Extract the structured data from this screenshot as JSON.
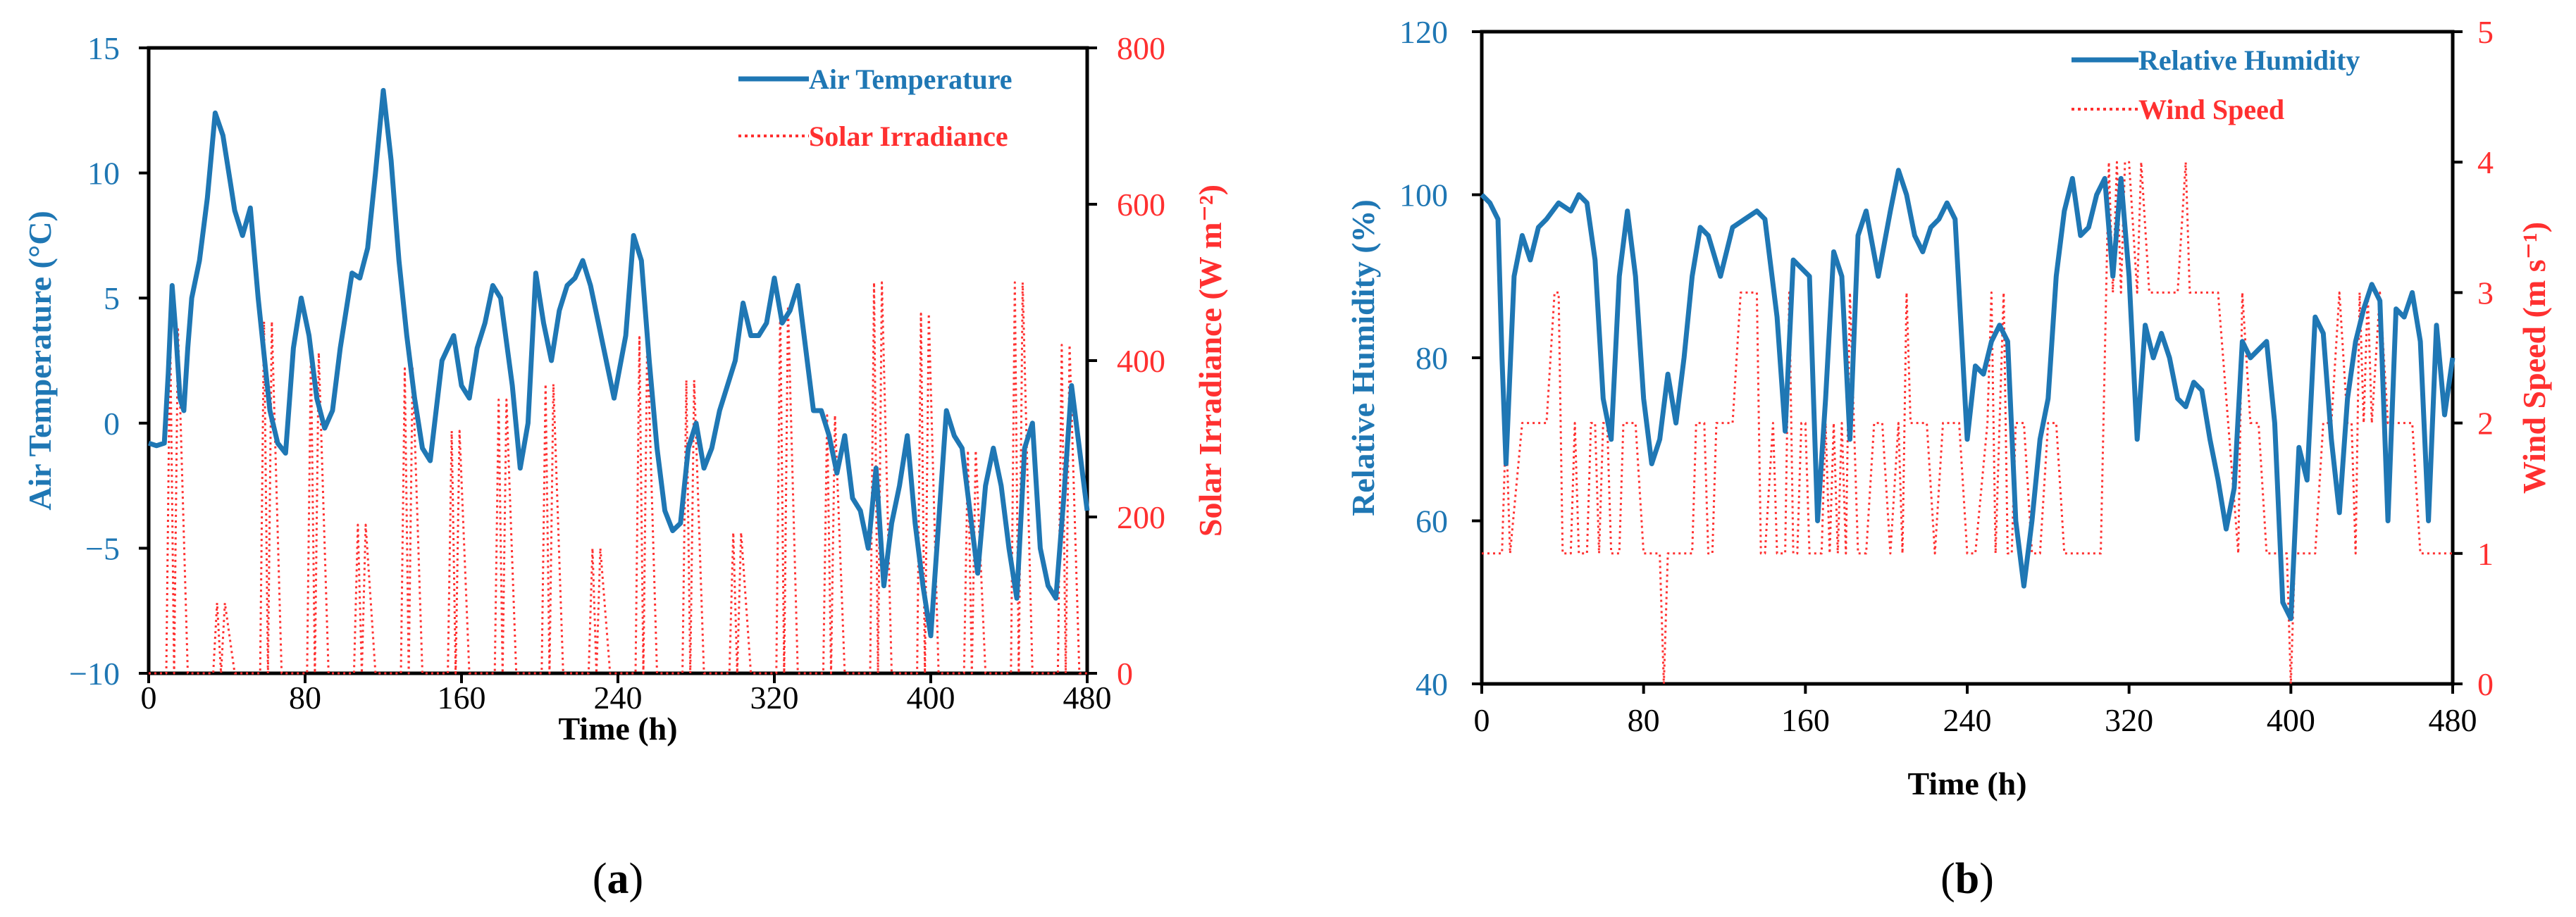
{
  "colors": {
    "primary": "#1f77b4",
    "secondary": "#ff3030",
    "axis": "#000000"
  },
  "chart_data": [
    {
      "type": "line",
      "panel_label": "(a)",
      "panel_letter": "a",
      "xlabel": "Time (h)",
      "ylabel_left": "Air Temperature (°C)",
      "ylabel_right": "Solar Irradiance (W m⁻²)",
      "xlim": [
        0,
        480
      ],
      "ylim_left": [
        -10,
        15
      ],
      "ylim_right": [
        0,
        800
      ],
      "x_ticks": [
        "0",
        "80",
        "160",
        "240",
        "320",
        "400",
        "480"
      ],
      "y_left_ticks": [
        "15",
        "10",
        "5",
        "0",
        "−5",
        "−10"
      ],
      "y_right_ticks": [
        "800",
        "600",
        "400",
        "200",
        "0"
      ],
      "legend": [
        "Air Temperature",
        "Solar Irradiance"
      ],
      "series": [
        {
          "name": "Air Temperature",
          "axis": "left",
          "style": "solid",
          "x": [
            0,
            4,
            8,
            10,
            12,
            14,
            16,
            18,
            20,
            22,
            26,
            30,
            34,
            38,
            42,
            44,
            48,
            52,
            56,
            60,
            62,
            66,
            70,
            74,
            78,
            82,
            86,
            90,
            94,
            98,
            104,
            108,
            112,
            116,
            120,
            124,
            128,
            132,
            136,
            140,
            144,
            150,
            156,
            160,
            164,
            168,
            172,
            176,
            180,
            186,
            190,
            194,
            198,
            202,
            206,
            210,
            214,
            218,
            222,
            226,
            230,
            234,
            238,
            244,
            248,
            252,
            256,
            260,
            264,
            268,
            272,
            276,
            280,
            284,
            288,
            292,
            296,
            300,
            304,
            308,
            312,
            316,
            320,
            324,
            328,
            332,
            336,
            340,
            344,
            348,
            352,
            356,
            360,
            364,
            368,
            372,
            376,
            380,
            384,
            388,
            392,
            396,
            400,
            404,
            408,
            412,
            416,
            420,
            424,
            428,
            432,
            436,
            440,
            444,
            448,
            452,
            456,
            460,
            464,
            468,
            472,
            476,
            480
          ],
          "values": [
            -0.8,
            -0.9,
            -0.8,
            2.0,
            5.5,
            3.5,
            1.0,
            0.5,
            3.0,
            5.0,
            6.5,
            9.0,
            12.4,
            11.5,
            9.5,
            8.5,
            7.5,
            8.6,
            5.0,
            2.0,
            0.5,
            -0.8,
            -1.2,
            3.0,
            5.0,
            3.5,
            1.0,
            -0.2,
            0.5,
            3.0,
            6.0,
            5.8,
            7.0,
            10.0,
            13.3,
            10.5,
            6.5,
            3.5,
            1.0,
            -1.0,
            -1.5,
            2.5,
            3.5,
            1.5,
            1.0,
            3.0,
            4.0,
            5.5,
            5.0,
            1.5,
            -1.8,
            0.0,
            6.0,
            4.0,
            2.5,
            4.5,
            5.5,
            5.8,
            6.5,
            5.5,
            4.0,
            2.5,
            1.0,
            3.5,
            7.5,
            6.5,
            2.5,
            -1.0,
            -3.5,
            -4.3,
            -4.0,
            -1.0,
            0.0,
            -1.8,
            -1.0,
            0.5,
            1.5,
            2.5,
            4.8,
            3.5,
            3.5,
            4.0,
            5.8,
            4.0,
            4.5,
            5.5,
            3.0,
            0.5,
            0.5,
            -0.5,
            -2.0,
            -0.5,
            -3.0,
            -3.5,
            -5.0,
            -1.8,
            -6.5,
            -4.0,
            -2.5,
            -0.5,
            -4.0,
            -6.5,
            -8.5,
            -4.0,
            0.5,
            -0.5,
            -1.0,
            -3.5,
            -6.0,
            -2.5,
            -1.0,
            -2.5,
            -5.0,
            -7.0,
            -1.0,
            0.0,
            -5.0,
            -6.5,
            -7.0,
            -3.0,
            1.5,
            -1.0,
            -3.5
          ]
        },
        {
          "name": "Solar Irradiance",
          "axis": "right",
          "style": "dotted",
          "x": [
            0,
            6,
            9,
            11,
            13,
            15,
            20,
            31,
            33,
            35,
            37,
            39,
            44,
            55,
            57,
            59,
            61,
            63,
            68,
            79,
            81,
            83,
            85,
            87,
            92,
            103,
            105,
            107,
            109,
            111,
            116,
            127,
            129,
            131,
            133,
            135,
            140,
            151,
            153,
            155,
            157,
            159,
            164,
            175,
            177,
            179,
            181,
            183,
            188,
            199,
            201,
            203,
            205,
            207,
            212,
            223,
            225,
            227,
            229,
            231,
            236,
            247,
            249,
            251,
            253,
            255,
            260,
            271,
            273,
            275,
            277,
            279,
            284,
            295,
            297,
            299,
            301,
            303,
            308,
            319,
            321,
            323,
            325,
            327,
            332,
            343,
            345,
            347,
            349,
            351,
            356,
            367,
            369,
            371,
            373,
            375,
            380,
            391,
            393,
            395,
            397,
            399,
            404,
            415,
            417,
            419,
            421,
            423,
            428,
            439,
            441,
            443,
            445,
            447,
            452,
            463,
            465,
            467,
            469,
            471,
            476,
            480
          ],
          "values": [
            0,
            0,
            0,
            440,
            0,
            440,
            0,
            0,
            0,
            90,
            0,
            90,
            0,
            0,
            0,
            450,
            0,
            450,
            0,
            0,
            0,
            410,
            0,
            410,
            0,
            0,
            0,
            190,
            0,
            190,
            0,
            0,
            0,
            390,
            0,
            390,
            0,
            0,
            0,
            310,
            0,
            310,
            0,
            0,
            0,
            350,
            0,
            350,
            0,
            0,
            0,
            370,
            0,
            370,
            0,
            0,
            0,
            160,
            0,
            160,
            0,
            0,
            0,
            430,
            0,
            430,
            0,
            0,
            0,
            375,
            0,
            375,
            0,
            0,
            0,
            180,
            0,
            180,
            0,
            0,
            0,
            470,
            0,
            470,
            0,
            0,
            0,
            330,
            0,
            330,
            0,
            0,
            0,
            500,
            0,
            500,
            0,
            0,
            0,
            460,
            0,
            460,
            0,
            0,
            0,
            285,
            0,
            285,
            0,
            0,
            0,
            500,
            0,
            500,
            0,
            0,
            0,
            420,
            0,
            420,
            0,
            0
          ]
        }
      ]
    },
    {
      "type": "line",
      "panel_label": "(b)",
      "panel_letter": "b",
      "xlabel": "Time (h)",
      "ylabel_left": "Relative Humidity (%)",
      "ylabel_right": "Wind Speed (m s⁻¹)",
      "xlim": [
        0,
        480
      ],
      "ylim_left": [
        40,
        120
      ],
      "ylim_right": [
        0,
        5
      ],
      "x_ticks": [
        "0",
        "80",
        "160",
        "240",
        "320",
        "400",
        "480"
      ],
      "y_left_ticks": [
        "120",
        "100",
        "80",
        "60",
        "40"
      ],
      "y_right_ticks": [
        "5",
        "4",
        "3",
        "2",
        "1",
        "0"
      ],
      "legend": [
        "Relative Humidity",
        "Wind Speed"
      ],
      "series": [
        {
          "name": "Relative Humidity",
          "axis": "left",
          "style": "solid",
          "x": [
            0,
            4,
            8,
            10,
            12,
            16,
            20,
            24,
            28,
            32,
            38,
            44,
            48,
            52,
            56,
            60,
            64,
            68,
            72,
            76,
            80,
            84,
            88,
            92,
            96,
            100,
            104,
            108,
            112,
            118,
            124,
            130,
            136,
            140,
            146,
            150,
            154,
            158,
            162,
            166,
            170,
            174,
            178,
            182,
            186,
            190,
            196,
            202,
            206,
            210,
            214,
            218,
            222,
            226,
            230,
            234,
            240,
            244,
            248,
            252,
            256,
            260,
            264,
            268,
            272,
            276,
            280,
            284,
            288,
            292,
            296,
            300,
            304,
            308,
            312,
            316,
            320,
            324,
            328,
            332,
            336,
            340,
            344,
            348,
            352,
            356,
            360,
            364,
            368,
            372,
            376,
            380,
            384,
            388,
            392,
            396,
            400,
            404,
            408,
            412,
            416,
            420,
            424,
            428,
            432,
            436,
            440,
            444,
            448,
            452,
            456,
            460,
            464,
            468,
            472,
            476,
            480
          ],
          "values": [
            100,
            99,
            97,
            80,
            67,
            90,
            95,
            92,
            96,
            97,
            99,
            98,
            100,
            99,
            92,
            75,
            70,
            90,
            98,
            90,
            75,
            67,
            70,
            78,
            72,
            80,
            90,
            96,
            95,
            90,
            96,
            97,
            98,
            97,
            85,
            71,
            92,
            91,
            90,
            60,
            75,
            93,
            90,
            70,
            95,
            98,
            90,
            98,
            103,
            100,
            95,
            93,
            96,
            97,
            99,
            97,
            70,
            79,
            78,
            82,
            84,
            82,
            60,
            52,
            60,
            70,
            75,
            90,
            98,
            102,
            95,
            96,
            100,
            102,
            90,
            102,
            90,
            70,
            84,
            80,
            83,
            80,
            75,
            74,
            77,
            76,
            70,
            65,
            59,
            64,
            82,
            80,
            81,
            82,
            72,
            50,
            48,
            69,
            65,
            85,
            83,
            70,
            61,
            75,
            82,
            86,
            89,
            87,
            60,
            86,
            85,
            88,
            82,
            60,
            84,
            73,
            80
          ]
        },
        {
          "name": "Wind Speed",
          "axis": "right",
          "style": "dotted",
          "x": [
            0,
            10,
            12,
            14,
            20,
            24,
            28,
            32,
            36,
            38,
            40,
            44,
            46,
            48,
            52,
            54,
            56,
            58,
            60,
            62,
            64,
            68,
            70,
            72,
            76,
            80,
            84,
            86,
            88,
            90,
            92,
            94,
            100,
            104,
            106,
            110,
            112,
            114,
            116,
            120,
            124,
            128,
            132,
            136,
            138,
            140,
            144,
            146,
            150,
            152,
            154,
            156,
            158,
            160,
            162,
            164,
            168,
            170,
            172,
            174,
            176,
            178,
            180,
            182,
            184,
            186,
            190,
            194,
            198,
            202,
            206,
            208,
            210,
            212,
            214,
            216,
            220,
            224,
            228,
            232,
            236,
            240,
            244,
            250,
            252,
            254,
            256,
            258,
            260,
            262,
            264,
            268,
            272,
            276,
            280,
            284,
            288,
            292,
            296,
            300,
            306,
            310,
            312,
            314,
            316,
            318,
            320,
            324,
            326,
            330,
            340,
            344,
            348,
            350,
            356,
            360,
            364,
            374,
            376,
            380,
            384,
            388,
            392,
            396,
            398,
            400,
            402,
            404,
            408,
            412,
            416,
            420,
            424,
            428,
            430,
            432,
            434,
            436,
            438,
            440,
            444,
            448,
            452,
            456,
            460,
            464,
            468,
            472,
            476,
            480
          ],
          "values": [
            1,
            1,
            2,
            1,
            2,
            2,
            2,
            2,
            3,
            3,
            1,
            1,
            2,
            1,
            1,
            2,
            2,
            1,
            2,
            2,
            1,
            1,
            2,
            2,
            2,
            1,
            1,
            1,
            1,
            0,
            1,
            1,
            1,
            1,
            2,
            2,
            1,
            1,
            2,
            2,
            2,
            3,
            3,
            3,
            1,
            1,
            2,
            1,
            1,
            3,
            1,
            1,
            2,
            2,
            1,
            1,
            1,
            2,
            1,
            2,
            1,
            2,
            1,
            3,
            2,
            1,
            1,
            2,
            2,
            1,
            2,
            1,
            3,
            2,
            2,
            2,
            2,
            1,
            2,
            2,
            2,
            1,
            1,
            2,
            3,
            1,
            2,
            3,
            1,
            1,
            2,
            2,
            1,
            1,
            2,
            2,
            1,
            1,
            1,
            1,
            1,
            4,
            3,
            4,
            3,
            4,
            4,
            3,
            4,
            3,
            3,
            3,
            4,
            3,
            3,
            3,
            3,
            1,
            3,
            2,
            2,
            1,
            1,
            1,
            1,
            0,
            1,
            1,
            1,
            1,
            2,
            2,
            3,
            2,
            2,
            1,
            3,
            2,
            3,
            2,
            3,
            2,
            2,
            2,
            2,
            1,
            1,
            1,
            1,
            1
          ]
        }
      ]
    }
  ]
}
